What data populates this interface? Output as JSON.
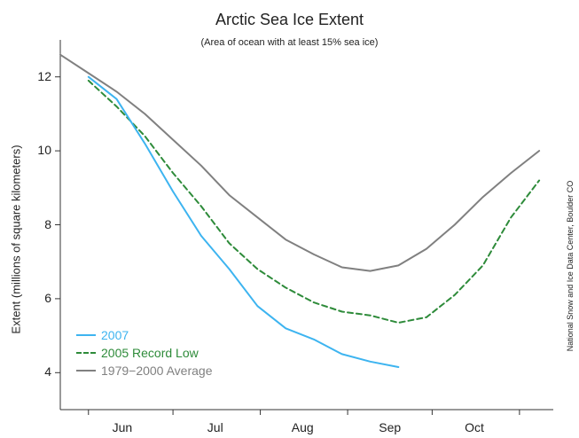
{
  "chart_data": {
    "type": "line",
    "title": "Arctic Sea Ice Extent",
    "subtitle": "(Area of ocean with at least 15% sea ice)",
    "ylabel": "Extent (millions of square kilometers)",
    "xlabel": "",
    "credit": "National Snow and Ice Data Center, Boulder CO",
    "ylim": [
      3,
      13
    ],
    "yticks": [
      4,
      6,
      8,
      10,
      12
    ],
    "x_months": [
      "Jun",
      "Jul",
      "Aug",
      "Sep",
      "Oct"
    ],
    "legend_position": "bottom-left",
    "grid": false,
    "series": [
      {
        "name": "2007",
        "color": "#3db4f0",
        "style": "solid",
        "x": [
          0,
          10,
          20,
          30,
          40,
          50,
          60,
          70,
          80,
          90,
          100,
          110
        ],
        "y": [
          12.0,
          11.4,
          10.2,
          8.9,
          7.7,
          6.8,
          5.8,
          5.2,
          4.9,
          4.5,
          4.3,
          4.15
        ]
      },
      {
        "name": "2005 Record Low",
        "color": "#2e8b3a",
        "style": "dashed",
        "x": [
          0,
          10,
          20,
          30,
          40,
          50,
          60,
          70,
          80,
          90,
          100,
          110,
          120,
          130,
          140,
          150,
          160
        ],
        "y": [
          11.9,
          11.2,
          10.4,
          9.4,
          8.5,
          7.5,
          6.8,
          6.3,
          5.9,
          5.65,
          5.55,
          5.35,
          5.5,
          6.1,
          6.9,
          8.2,
          9.2
        ]
      },
      {
        "name": "1979−2000 Average",
        "color": "#808080",
        "style": "solid",
        "x": [
          -10,
          0,
          10,
          20,
          30,
          40,
          50,
          60,
          70,
          80,
          90,
          100,
          110,
          120,
          130,
          140,
          150,
          160
        ],
        "y": [
          12.6,
          12.1,
          11.6,
          11.0,
          10.3,
          9.6,
          8.8,
          8.2,
          7.6,
          7.2,
          6.85,
          6.75,
          6.9,
          7.35,
          8.0,
          8.75,
          9.4,
          10.0
        ]
      }
    ]
  }
}
